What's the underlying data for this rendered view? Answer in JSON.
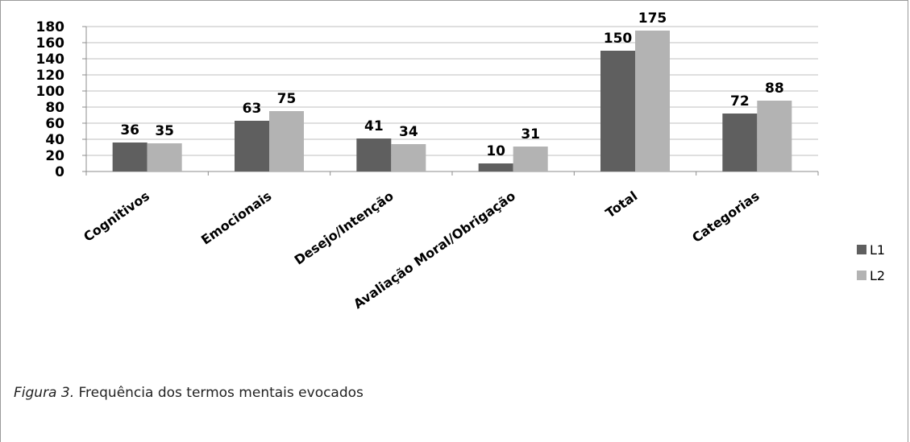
{
  "chart_data": {
    "type": "bar",
    "categories": [
      "Cognitivos",
      "Emocionais",
      "Desejo/Intenção",
      "Avaliação Moral/Obrigação",
      "Total",
      "Categorias"
    ],
    "series": [
      {
        "name": "L1",
        "values": [
          36,
          63,
          41,
          10,
          150,
          72
        ],
        "color": "#5f5f5f"
      },
      {
        "name": "L2",
        "values": [
          35,
          75,
          34,
          31,
          175,
          88
        ],
        "color": "#b3b3b3"
      }
    ],
    "ylim": [
      0,
      180
    ],
    "yticks": [
      0,
      20,
      40,
      60,
      80,
      100,
      120,
      140,
      160,
      180
    ],
    "grid": true,
    "legend_position": "right"
  },
  "caption": {
    "label": "Figura 3.",
    "text": " Frequência dos termos mentais evocados"
  }
}
